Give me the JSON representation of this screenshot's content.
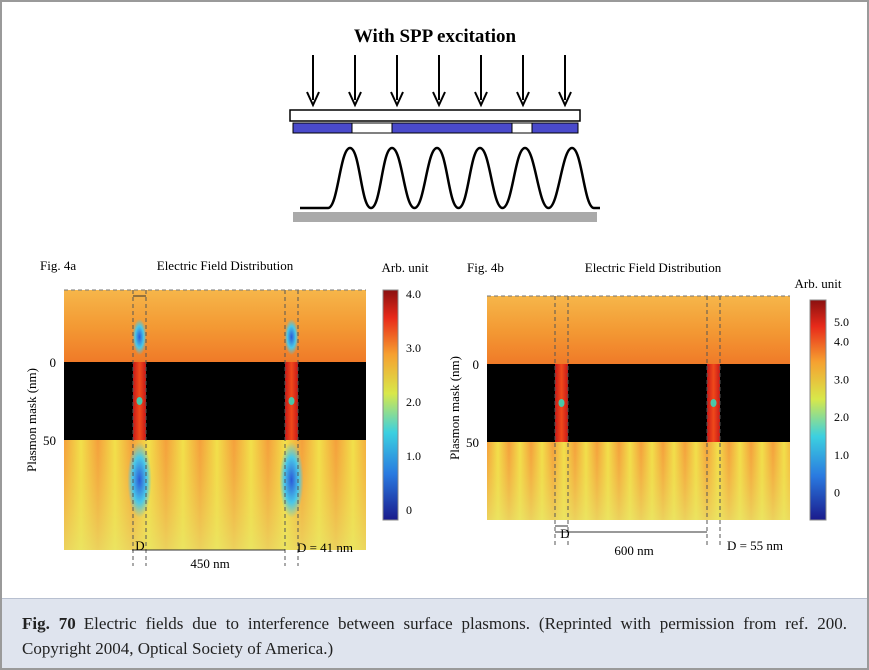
{
  "figure": {
    "top": {
      "title": "With SPP excitation"
    },
    "panels": [
      {
        "label": "Fig. 4a",
        "title": "Electric Field Distribution",
        "colorbar_title": "Arb. unit",
        "colorbar_ticks": [
          "4.0",
          "3.0",
          "2.0",
          "1.0",
          "0"
        ],
        "y_label": "Plasmon mask (nm)",
        "y_ticks": [
          "0",
          "50"
        ],
        "d_label": "D",
        "spacing": "450 nm",
        "d_value": "D = 41 nm"
      },
      {
        "label": "Fig. 4b",
        "title": "Electric Field Distribution",
        "colorbar_title": "Arb. unit",
        "colorbar_ticks": [
          "5.0",
          "4.0",
          "3.0",
          "2.0",
          "1.0",
          "0"
        ],
        "y_label": "Plasmon mask (nm)",
        "y_ticks": [
          "0",
          "50"
        ],
        "d_label": "D",
        "spacing": "600 nm",
        "d_value": "D = 55 nm"
      }
    ]
  },
  "caption": {
    "label": "Fig. 70",
    "text": "Electric fields due to interference between surface plasmons. (Reprinted with permission from ref. 200. Copyright 2004, Optical Society of America.)"
  }
}
